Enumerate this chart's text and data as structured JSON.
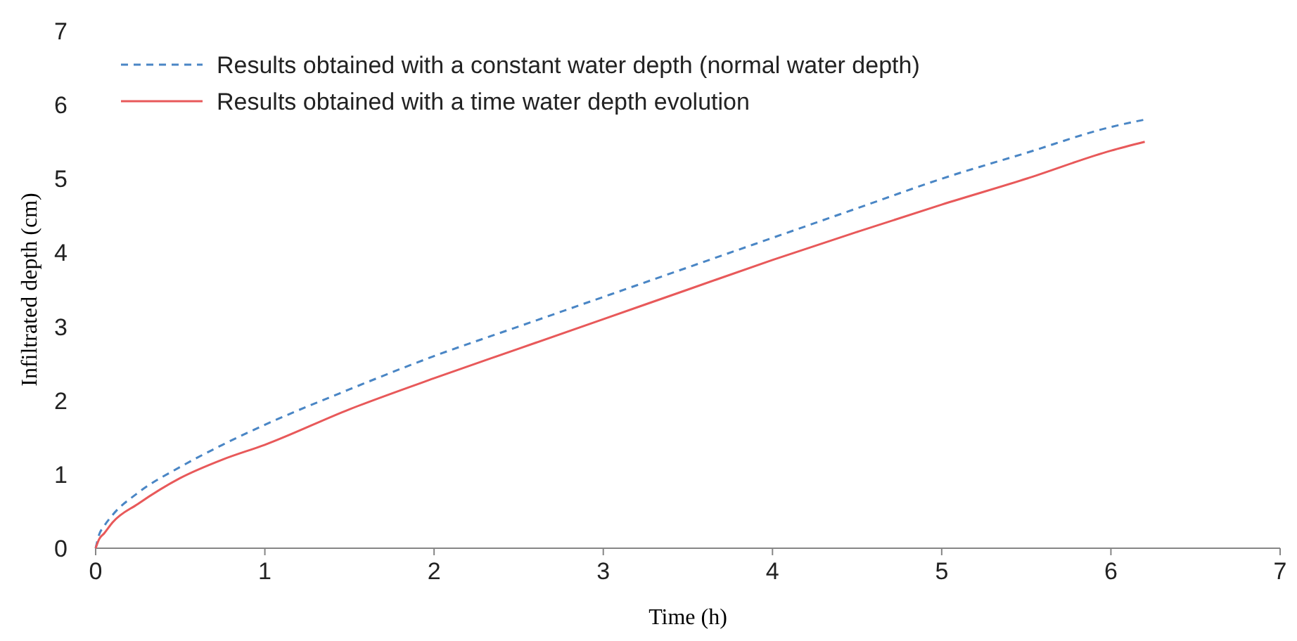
{
  "chart_data": {
    "type": "line",
    "xlabel": "Time (h)",
    "ylabel": "Infiltrated depth (cm)",
    "xlim": [
      0,
      7
    ],
    "ylim": [
      0,
      7
    ],
    "xticks": [
      0,
      1,
      2,
      3,
      4,
      5,
      6,
      7
    ],
    "yticks": [
      0,
      1,
      2,
      3,
      4,
      5,
      6,
      7
    ],
    "grid": false,
    "legend": "top left",
    "x": [
      0,
      0.02,
      0.05,
      0.1,
      0.25,
      0.5,
      0.75,
      1,
      1.5,
      2,
      2.5,
      3,
      3.5,
      4,
      4.5,
      5,
      5.5,
      6,
      6.2
    ],
    "series": [
      {
        "name": "Results obtained with a constant water depth (normal water depth)",
        "color": "#4a86c5",
        "line_style": "dashed",
        "values": [
          0,
          0.18,
          0.3,
          0.45,
          0.75,
          1.1,
          1.4,
          1.67,
          2.15,
          2.6,
          3.0,
          3.4,
          3.8,
          4.2,
          4.6,
          5.0,
          5.35,
          5.7,
          5.8
        ]
      },
      {
        "name": "Results obtained with a time water depth evolution",
        "color": "#e8595a",
        "line_style": "solid",
        "values": [
          0,
          0.12,
          0.2,
          0.35,
          0.6,
          0.95,
          1.2,
          1.4,
          1.88,
          2.3,
          2.7,
          3.1,
          3.5,
          3.9,
          4.28,
          4.65,
          5.0,
          5.38,
          5.5
        ]
      }
    ]
  }
}
